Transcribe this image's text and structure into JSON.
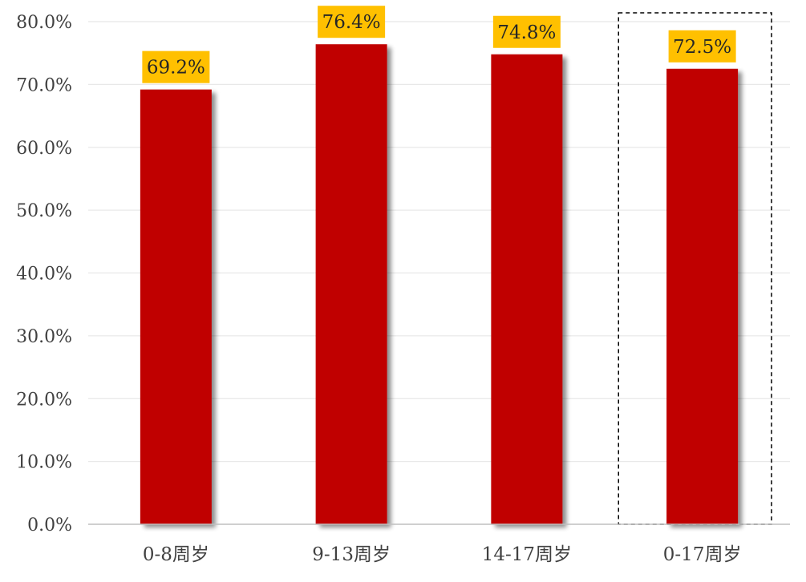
{
  "chart_data": {
    "type": "bar",
    "title": "",
    "xlabel": "",
    "ylabel": "",
    "categories": [
      "0-8周岁",
      "9-13周岁",
      "14-17周岁",
      "0-17周岁"
    ],
    "values": [
      69.2,
      76.4,
      74.8,
      72.5
    ],
    "data_labels": [
      "69.2%",
      "76.4%",
      "74.8%",
      "72.5%"
    ],
    "ylim": [
      0,
      80
    ],
    "yticks": [
      0,
      10,
      20,
      30,
      40,
      50,
      60,
      70,
      80
    ],
    "ytick_labels": [
      "0.0%",
      "10.0%",
      "20.0%",
      "30.0%",
      "40.0%",
      "50.0%",
      "60.0%",
      "70.0%",
      "80.0%"
    ],
    "grid": true,
    "legend": "none",
    "highlighted_category": "0-17周岁",
    "colors": {
      "bar": "#C00000",
      "label_background": "#FFC000",
      "gridline": "#E8E8E8",
      "axis": "#BFBFBF",
      "highlight_border": "#000000"
    }
  }
}
